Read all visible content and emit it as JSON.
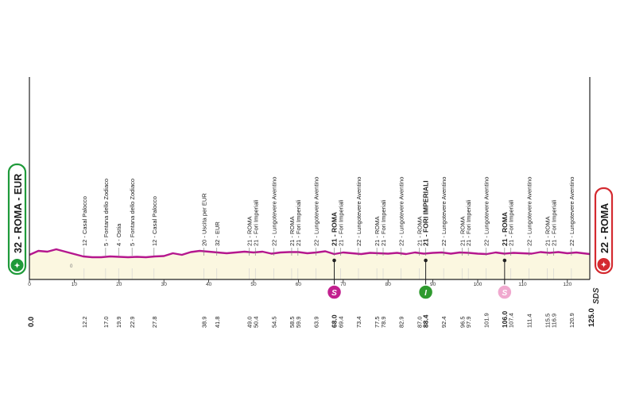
{
  "chart_data": {
    "type": "area",
    "xlim": [
      0,
      125
    ],
    "x_ticks": [
      0,
      10,
      20,
      30,
      40,
      50,
      60,
      70,
      80,
      90,
      100,
      110,
      120
    ],
    "x_tick_labels": [
      "0",
      "10",
      "20",
      "30",
      "40",
      "50",
      "60",
      "70",
      "80",
      "90",
      "100",
      "110",
      "120"
    ],
    "profile": {
      "x": [
        0,
        2,
        4,
        6,
        8,
        10,
        12,
        14,
        16,
        18,
        20,
        22,
        24,
        26,
        28,
        30,
        32,
        34,
        36,
        38,
        40,
        42,
        44,
        46,
        48,
        50,
        52,
        54,
        56,
        58,
        60,
        62,
        64,
        66,
        68,
        70,
        72,
        74,
        76,
        78,
        80,
        82,
        84,
        86,
        88,
        90,
        92,
        94,
        96,
        98,
        100,
        102,
        104,
        106,
        108,
        110,
        112,
        114,
        116,
        118,
        120,
        122,
        125
      ],
      "y": [
        30,
        40,
        38,
        44,
        38,
        32,
        26,
        24,
        24,
        26,
        25,
        24,
        25,
        24,
        26,
        27,
        34,
        30,
        37,
        40,
        38,
        36,
        34,
        36,
        38,
        36,
        38,
        33,
        36,
        37,
        37,
        34,
        36,
        39,
        32,
        36,
        34,
        32,
        35,
        34,
        33,
        35,
        32,
        36,
        33,
        35,
        36,
        33,
        36,
        35,
        33,
        32,
        36,
        33,
        35,
        34,
        33,
        37,
        35,
        37,
        34,
        36,
        32
      ]
    },
    "start_label": "32 - ROMA - EUR",
    "finish_label": "22 - ROMA",
    "start_km": "0.0",
    "finish_km": "125.0",
    "logo_text": "SDS",
    "annotation_zero": "0",
    "waypoints": [
      {
        "km": 12.2,
        "km_label": "12.2",
        "name": "12 - Casal Palocco",
        "bold": false
      },
      {
        "km": 17.0,
        "km_label": "17.0",
        "name": "5 - Fontana dello Zodiaco",
        "bold": false
      },
      {
        "km": 19.9,
        "km_label": "19.9",
        "name": "4 - Ostia",
        "bold": false
      },
      {
        "km": 22.9,
        "km_label": "22.9",
        "name": "5 - Fontana dello Zodiaco",
        "bold": false
      },
      {
        "km": 27.8,
        "km_label": "27.8",
        "name": "12 - Casal Palocco",
        "bold": false
      },
      {
        "km": 38.9,
        "km_label": "38.9",
        "name": "20 - Uscita per EUR",
        "bold": false
      },
      {
        "km": 41.8,
        "km_label": "41.8",
        "name": "32 - EUR",
        "bold": false
      },
      {
        "km": 49.0,
        "km_label": "49.0",
        "name": "21 - ROMA",
        "bold": false
      },
      {
        "km": 50.4,
        "km_label": "50.4",
        "name": "21 - Fori Imperiali",
        "bold": false
      },
      {
        "km": 54.5,
        "km_label": "54.5",
        "name": "22 - Lungotevere Aventino",
        "bold": false
      },
      {
        "km": 58.5,
        "km_label": "58.5",
        "name": "21 - ROMA",
        "bold": false
      },
      {
        "km": 59.9,
        "km_label": "59.9",
        "name": "21 - Fori Imperiali",
        "bold": false
      },
      {
        "km": 63.9,
        "km_label": "63.9",
        "name": "22 - Lungotevere Aventino",
        "bold": false
      },
      {
        "km": 68.0,
        "km_label": "68.0",
        "name": "21 - ROMA",
        "bold": true
      },
      {
        "km": 69.4,
        "km_label": "69.4",
        "name": "21 - Fori Imperiali",
        "bold": false
      },
      {
        "km": 73.4,
        "km_label": "73.4",
        "name": "22 - Lungotevere Aventino",
        "bold": false
      },
      {
        "km": 77.5,
        "km_label": "77.5",
        "name": "21 - ROMA",
        "bold": false
      },
      {
        "km": 78.9,
        "km_label": "78.9",
        "name": "21 - Fori Imperiali",
        "bold": false
      },
      {
        "km": 82.9,
        "km_label": "82.9",
        "name": "22 - Lungotevere Aventino",
        "bold": false
      },
      {
        "km": 87.0,
        "km_label": "87.0",
        "name": "21 - ROMA",
        "bold": false
      },
      {
        "km": 88.4,
        "km_label": "88.4",
        "name": "21 - FORI IMPERIALI",
        "bold": true
      },
      {
        "km": 92.4,
        "km_label": "92.4",
        "name": "22 - Lungotevere Aventino",
        "bold": false
      },
      {
        "km": 96.5,
        "km_label": "96.5",
        "name": "21 - ROMA",
        "bold": false
      },
      {
        "km": 97.9,
        "km_label": "97.9",
        "name": "21 - Fori Imperiali",
        "bold": false
      },
      {
        "km": 101.9,
        "km_label": "101.9",
        "name": "22 - Lungotevere Aventino",
        "bold": false
      },
      {
        "km": 106.0,
        "km_label": "106.0",
        "name": "21 - ROMA",
        "bold": true
      },
      {
        "km": 107.4,
        "km_label": "107.4",
        "name": "21 - Fori Imperiali",
        "bold": false
      },
      {
        "km": 111.4,
        "km_label": "111.4",
        "name": "22 - Lungotevere Aventino",
        "bold": false
      },
      {
        "km": 115.5,
        "km_label": "115.5",
        "name": "21 - ROMA",
        "bold": false
      },
      {
        "km": 116.9,
        "km_label": "116.9",
        "name": "21 - Fori Imperiali",
        "bold": false
      },
      {
        "km": 120.9,
        "km_label": "120.9",
        "name": "22 - Lungotevere Aventino",
        "bold": false
      }
    ],
    "markers": [
      {
        "km": 68.0,
        "label": "S",
        "type": "sprint",
        "color": "#c2208f"
      },
      {
        "km": 88.4,
        "label": "I",
        "type": "intermediate",
        "color": "#2e9a2e"
      },
      {
        "km": 106.0,
        "label": "S",
        "type": "sprint",
        "color": "#f0a9cf"
      }
    ],
    "colors": {
      "profile_line": "#b5178e",
      "profile_fill": "#fbf7e0",
      "start": "#1f9a3a",
      "finish": "#d42a30",
      "axis": "#222222"
    }
  }
}
